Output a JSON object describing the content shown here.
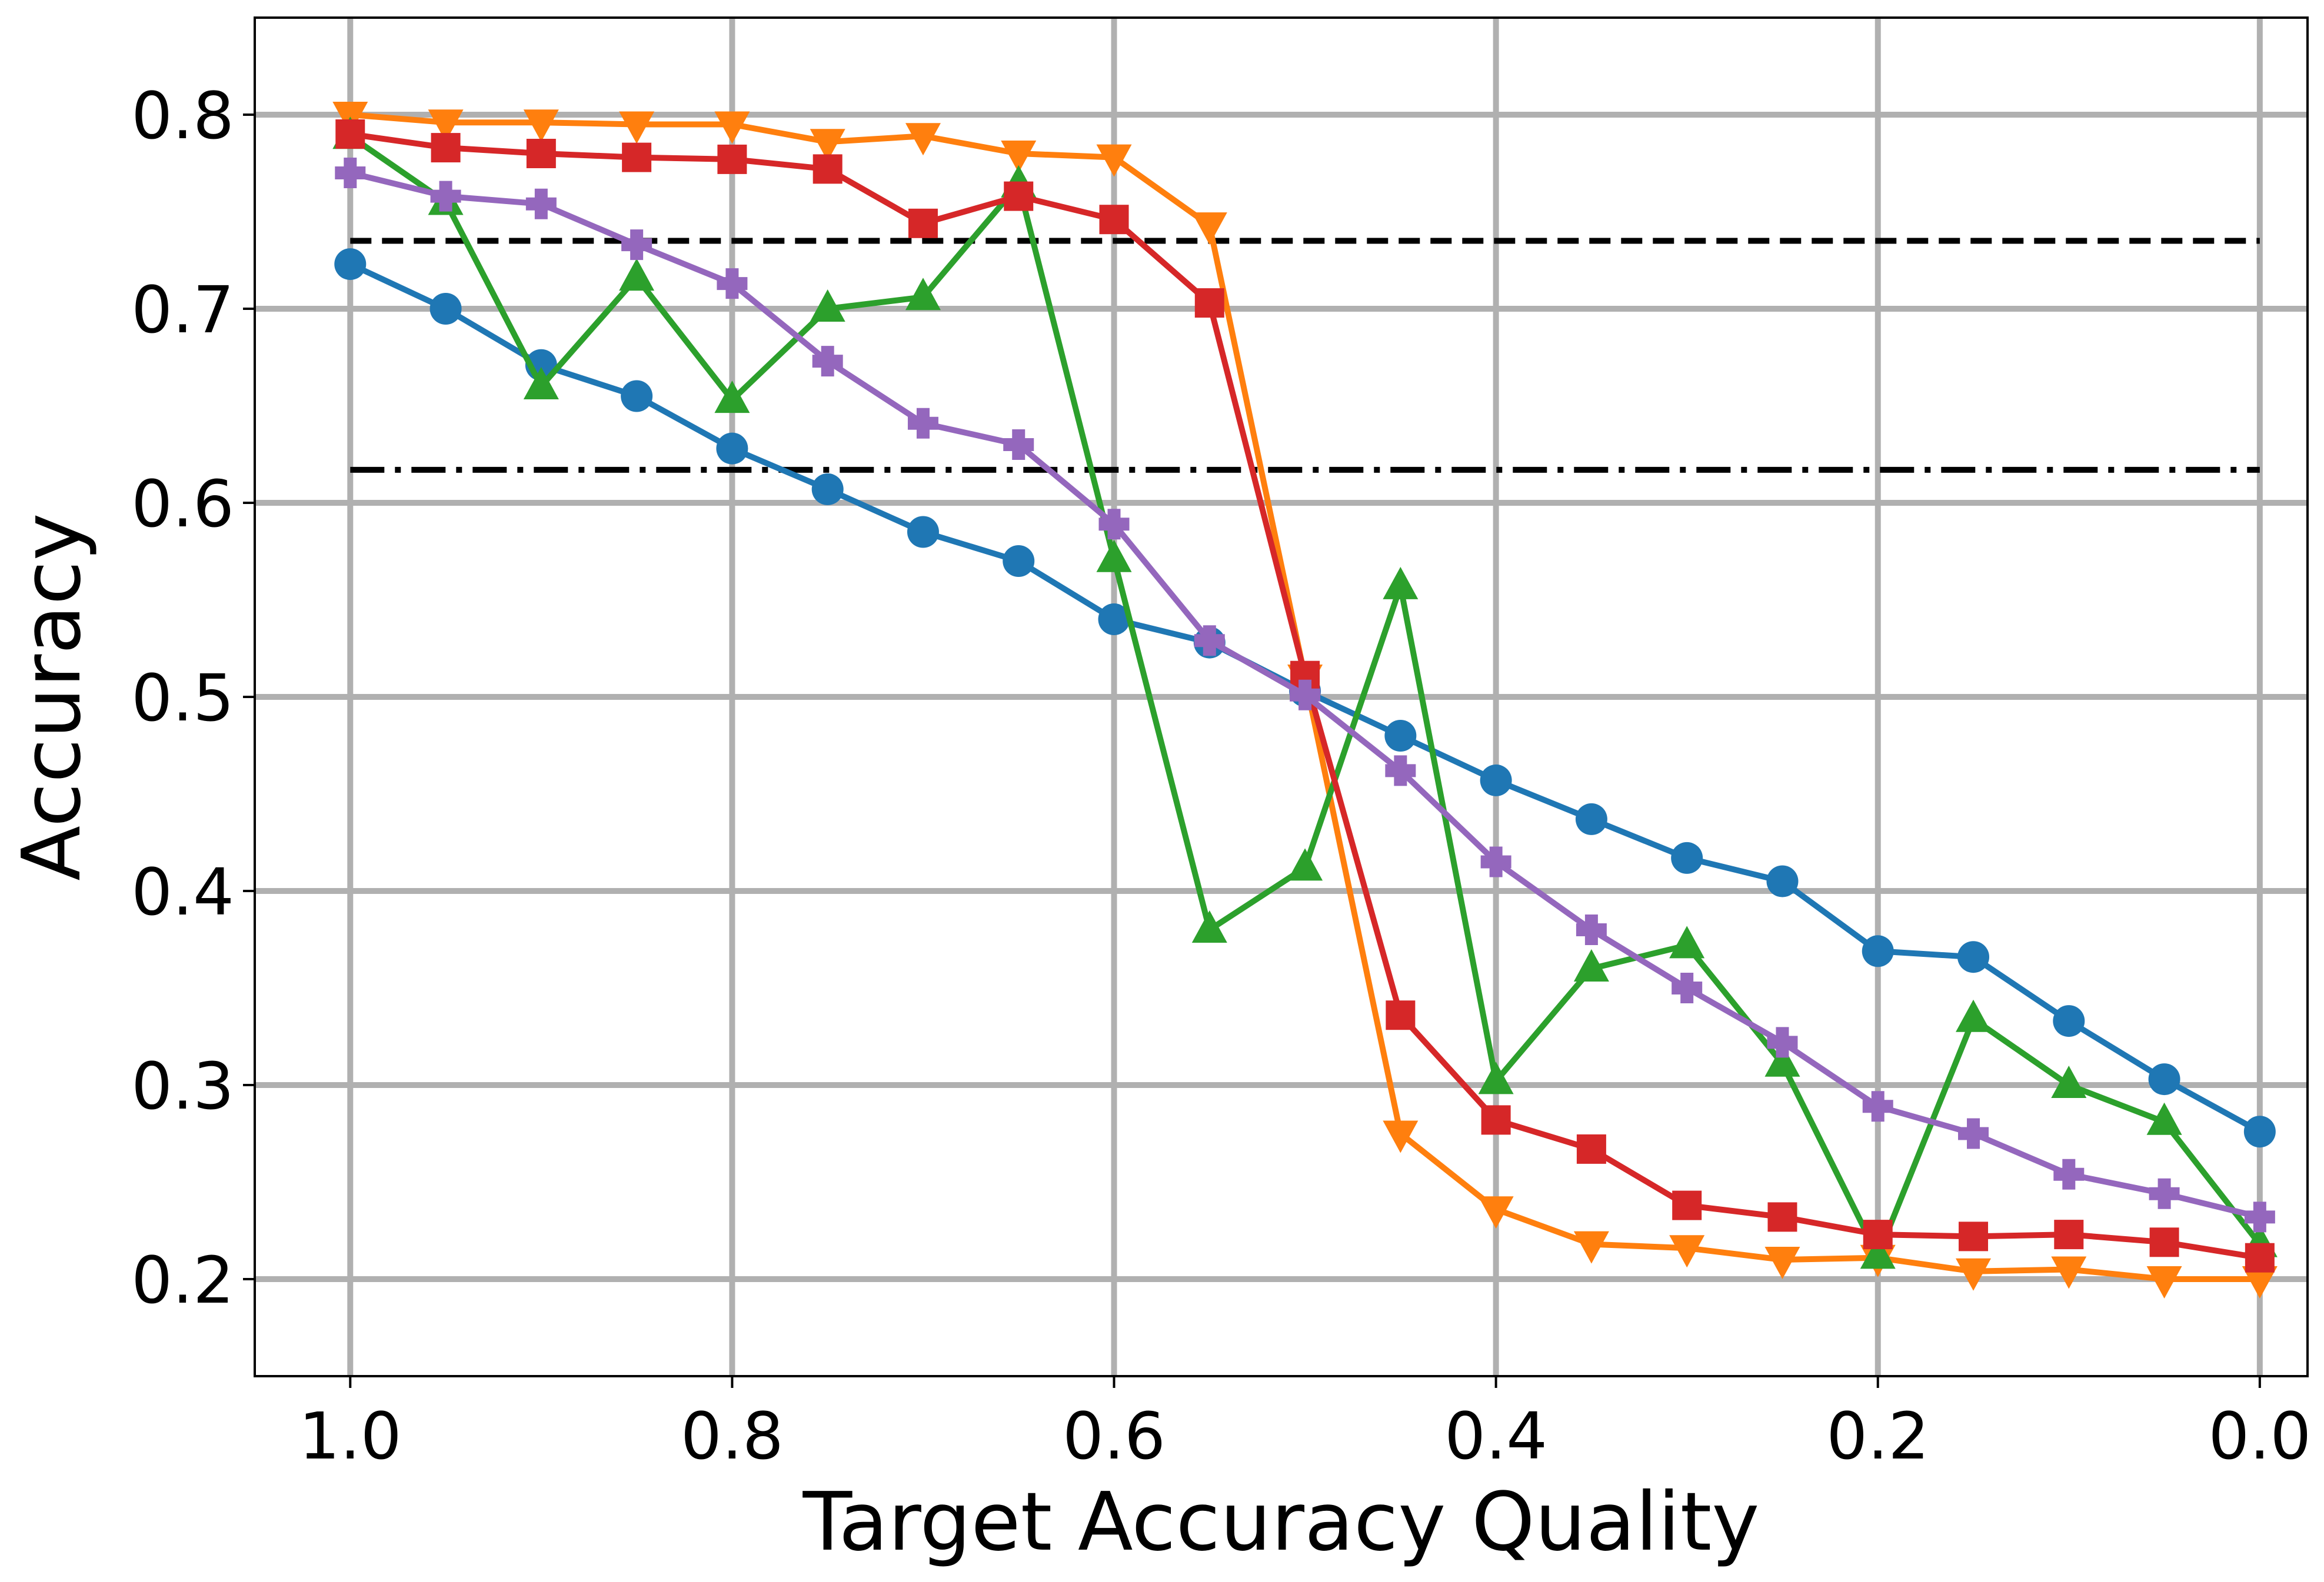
{
  "chart_data": {
    "type": "line",
    "xlabel": "Target Accuracy Quality",
    "ylabel": "Accuracy",
    "xlim": [
      1.05,
      -0.025
    ],
    "ylim": [
      0.15,
      0.85
    ],
    "x_reversed": true,
    "grid": true,
    "legend": "none",
    "xticks": [
      "1.0",
      "0.8",
      "0.6",
      "0.4",
      "0.2",
      "0.0"
    ],
    "yticks": [
      "0.2",
      "0.3",
      "0.4",
      "0.5",
      "0.6",
      "0.7",
      "0.8"
    ],
    "x": [
      1.0,
      0.95,
      0.9,
      0.85,
      0.8,
      0.75,
      0.7,
      0.65,
      0.6,
      0.55,
      0.5,
      0.45,
      0.4,
      0.35,
      0.3,
      0.25,
      0.2,
      0.15,
      0.1,
      0.05,
      0.0
    ],
    "series": [
      {
        "color": "#1f77b4",
        "marker": "circle",
        "values": [
          0.723,
          0.7,
          0.671,
          0.655,
          0.628,
          0.607,
          0.585,
          0.57,
          0.54,
          0.528,
          0.503,
          0.48,
          0.457,
          0.437,
          0.417,
          0.405,
          0.369,
          0.366,
          0.333,
          0.303,
          0.276
        ]
      },
      {
        "color": "#ff7f0e",
        "marker": "triangle-down",
        "values": [
          0.8,
          0.796,
          0.796,
          0.795,
          0.795,
          0.786,
          0.789,
          0.78,
          0.778,
          0.743,
          0.51,
          0.275,
          0.236,
          0.218,
          0.216,
          0.21,
          0.211,
          0.204,
          0.205,
          0.2,
          0.2
        ]
      },
      {
        "color": "#2ca02c",
        "marker": "triangle-up",
        "values": [
          0.789,
          0.755,
          0.66,
          0.716,
          0.653,
          0.7,
          0.706,
          0.764,
          0.571,
          0.38,
          0.412,
          0.557,
          0.302,
          0.36,
          0.372,
          0.311,
          0.212,
          0.334,
          0.3,
          0.281,
          0.218
        ]
      },
      {
        "color": "#d62728",
        "marker": "square",
        "values": [
          0.79,
          0.783,
          0.78,
          0.778,
          0.777,
          0.772,
          0.744,
          0.758,
          0.746,
          0.703,
          0.511,
          0.336,
          0.282,
          0.267,
          0.238,
          0.232,
          0.223,
          0.222,
          0.223,
          0.219,
          0.211
        ]
      },
      {
        "color": "#9467bd",
        "marker": "plus",
        "values": [
          0.77,
          0.758,
          0.754,
          0.733,
          0.713,
          0.673,
          0.641,
          0.63,
          0.589,
          0.529,
          0.501,
          0.462,
          0.415,
          0.38,
          0.35,
          0.322,
          0.289,
          0.275,
          0.254,
          0.244,
          0.232
        ]
      }
    ],
    "reference_lines": [
      {
        "y": 0.735,
        "style": "dashed",
        "x_range": [
          1.0,
          0.0
        ],
        "color": "#000000"
      },
      {
        "y": 0.617,
        "style": "dashdot",
        "x_range": [
          1.0,
          0.0
        ],
        "color": "#000000"
      }
    ]
  }
}
